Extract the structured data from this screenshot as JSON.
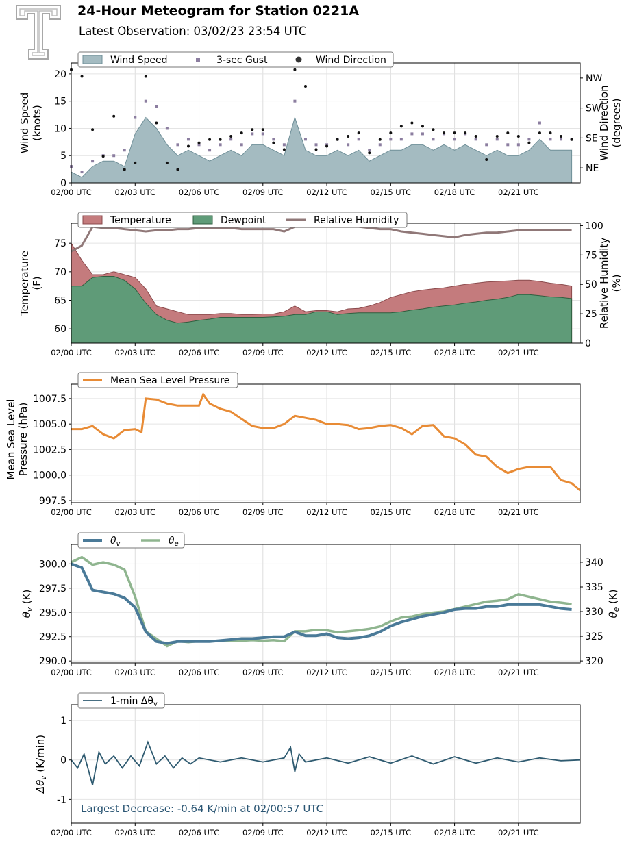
{
  "header": {
    "title": "24-Hour Meteogram for Station 0221A",
    "subtitle": "Latest Observation: 03/02/23 23:54 UTC",
    "logo_icon": "texas-tech-double-t-logo"
  },
  "colors": {
    "wind_speed": "#a4bbc1",
    "wind_speed_line": "#6f8f98",
    "gust": "#8c7ea0",
    "wind_dir": "#111111",
    "temperature": "#c47b7d",
    "dewpoint": "#5f9b78",
    "rh": "#907878",
    "pressure": "#e88b35",
    "theta_v": "#4a7a98",
    "theta_e": "#8fb58f",
    "dtheta": "#2e5a70",
    "annotation": "#2a5573"
  },
  "x_tick_labels": [
    "02/00 UTC",
    "02/03 UTC",
    "02/06 UTC",
    "02/09 UTC",
    "02/12 UTC",
    "02/15 UTC",
    "02/18 UTC",
    "02/21 UTC"
  ],
  "chart_data": [
    {
      "type": "area",
      "id": "wind",
      "legend": [
        "Wind Speed",
        "3-sec Gust",
        "Wind Direction"
      ],
      "ylabel": [
        "Wind Speed",
        "(knots)"
      ],
      "ylim": [
        0,
        22
      ],
      "yticks": [
        0,
        5,
        10,
        15,
        20
      ],
      "y2label": [
        "Wind Direction",
        "(degrees)"
      ],
      "y2ticks": [
        "NE",
        "SE",
        "SW",
        "NW"
      ],
      "x_hours": [
        0,
        0.5,
        1,
        1.5,
        2,
        2.5,
        3,
        3.5,
        4,
        4.5,
        5,
        5.5,
        6,
        6.5,
        7,
        7.5,
        8,
        8.5,
        9,
        9.5,
        10,
        10.5,
        11,
        11.5,
        12,
        12.5,
        13,
        13.5,
        14,
        14.5,
        15,
        15.5,
        16,
        16.5,
        17,
        17.5,
        18,
        18.5,
        19,
        19.5,
        20,
        20.5,
        21,
        21.5,
        22,
        22.5,
        23,
        23.5
      ],
      "series": [
        {
          "name": "Wind Speed",
          "values": [
            2,
            1,
            3,
            4,
            4,
            3,
            9,
            12,
            10,
            7,
            5,
            6,
            5,
            4,
            5,
            6,
            5,
            7,
            7,
            6,
            5,
            12,
            6,
            5,
            5,
            6,
            5,
            6,
            4,
            5,
            6,
            6,
            7,
            7,
            6,
            7,
            6,
            7,
            6,
            5,
            6,
            5,
            5,
            6,
            8,
            6,
            6,
            6
          ]
        },
        {
          "name": "3-sec Gust",
          "values": [
            3,
            2,
            4,
            5,
            5,
            6,
            12,
            15,
            14,
            10,
            7,
            8,
            7,
            6,
            7,
            8,
            7,
            9,
            9,
            8,
            7,
            15,
            8,
            7,
            7,
            8,
            7,
            8,
            6,
            7,
            8,
            8,
            9,
            9,
            8,
            9,
            8,
            9,
            8,
            7,
            8,
            7,
            7,
            8,
            11,
            8,
            8,
            8
          ]
        },
        {
          "name": "Wind Direction",
          "values": [
            340,
            320,
            160,
            80,
            200,
            40,
            60,
            320,
            180,
            60,
            40,
            110,
            120,
            130,
            130,
            140,
            150,
            160,
            160,
            120,
            100,
            340,
            290,
            100,
            110,
            130,
            140,
            150,
            90,
            130,
            150,
            170,
            180,
            170,
            160,
            150,
            150,
            150,
            140,
            70,
            140,
            150,
            140,
            120,
            150,
            150,
            140,
            130
          ]
        }
      ]
    },
    {
      "type": "area",
      "id": "temp",
      "legend": [
        "Temperature",
        "Dewpoint",
        "Relative Humidity"
      ],
      "ylabel": [
        "Temperature",
        "(F)"
      ],
      "ylim": [
        57.5,
        78.5
      ],
      "yticks": [
        60,
        65,
        70,
        75
      ],
      "y2label": [
        "Relative Humidity",
        "(%)"
      ],
      "y2lim": [
        0,
        102
      ],
      "y2ticks": [
        0,
        25,
        50,
        75,
        100
      ],
      "x_hours": [
        0,
        0.5,
        1,
        1.5,
        2,
        2.5,
        3,
        3.5,
        4,
        4.5,
        5,
        5.5,
        6,
        6.5,
        7,
        7.5,
        8,
        8.5,
        9,
        9.5,
        10,
        10.5,
        11,
        11.5,
        12,
        12.5,
        13,
        13.5,
        14,
        14.5,
        15,
        15.5,
        16,
        16.5,
        17,
        17.5,
        18,
        18.5,
        19,
        19.5,
        20,
        20.5,
        21,
        21.5,
        22,
        22.5,
        23,
        23.5
      ],
      "series": [
        {
          "name": "Temperature",
          "values": [
            75,
            72,
            69.5,
            69.5,
            70,
            69.5,
            69,
            67,
            64,
            63.5,
            63,
            62.5,
            62.5,
            62.5,
            62.7,
            62.7,
            62.5,
            62.5,
            62.6,
            62.6,
            63,
            64,
            63,
            63.2,
            63.2,
            63,
            63.5,
            63.6,
            64,
            64.6,
            65.5,
            66,
            66.5,
            66.8,
            67,
            67.2,
            67.5,
            67.8,
            68,
            68.2,
            68.3,
            68.4,
            68.5,
            68.5,
            68.3,
            68,
            67.8,
            67.5
          ]
        },
        {
          "name": "Dewpoint",
          "values": [
            67.5,
            67.5,
            69,
            69.2,
            69.2,
            68.5,
            67,
            64.5,
            62.5,
            61.5,
            61,
            61.2,
            61.5,
            61.7,
            62,
            62,
            62,
            62,
            62,
            62.1,
            62.2,
            62.5,
            62.5,
            63,
            63,
            62.5,
            62.7,
            62.8,
            62.8,
            62.8,
            62.8,
            63,
            63.3,
            63.5,
            63.8,
            64,
            64.2,
            64.5,
            64.7,
            65,
            65.2,
            65.5,
            66,
            66,
            65.8,
            65.6,
            65.5,
            65.3
          ]
        },
        {
          "name": "Relative Humidity",
          "values": [
            78,
            83,
            99,
            98,
            98,
            97,
            96,
            95,
            96,
            96,
            97,
            97,
            98,
            98,
            98,
            98,
            97,
            97,
            97,
            97,
            95,
            99,
            99,
            99,
            99,
            99,
            99,
            99,
            98,
            97,
            97,
            95,
            94,
            93,
            92,
            91,
            90,
            92,
            93,
            94,
            94,
            95,
            96,
            96,
            96,
            96,
            96,
            96
          ]
        }
      ]
    },
    {
      "type": "line",
      "id": "pressure",
      "legend": [
        "Mean Sea Level Pressure"
      ],
      "ylabel": [
        "Mean Sea Level",
        "Pressure (hPa)"
      ],
      "ylim": [
        997.3,
        1008.9
      ],
      "yticks": [
        997.5,
        1000.0,
        1002.5,
        1005.0,
        1007.5
      ],
      "x_hours": [
        0,
        0.5,
        1,
        1.5,
        2,
        2.5,
        3,
        3.3,
        3.5,
        4,
        4.5,
        5,
        5.5,
        6,
        6.2,
        6.5,
        7,
        7.5,
        8,
        8.5,
        9,
        9.5,
        10,
        10.5,
        11,
        11.5,
        12,
        12.5,
        13,
        13.5,
        14,
        14.5,
        15,
        15.5,
        16,
        16.5,
        17,
        17.5,
        18,
        18.5,
        19,
        19.5,
        20,
        20.5,
        21,
        21.5,
        22,
        22.5,
        23,
        23.5,
        23.9
      ],
      "series": [
        {
          "name": "Mean Sea Level Pressure",
          "values": [
            1004.5,
            1004.5,
            1004.8,
            1004.0,
            1003.6,
            1004.4,
            1004.5,
            1004.2,
            1007.5,
            1007.4,
            1007.0,
            1006.8,
            1006.8,
            1006.8,
            1007.9,
            1007.0,
            1006.5,
            1006.2,
            1005.5,
            1004.8,
            1004.6,
            1004.6,
            1005.0,
            1005.8,
            1005.6,
            1005.4,
            1005.0,
            1005.0,
            1004.9,
            1004.5,
            1004.6,
            1004.8,
            1004.9,
            1004.6,
            1004.0,
            1004.8,
            1004.9,
            1003.8,
            1003.6,
            1003.0,
            1002.0,
            1001.8,
            1000.8,
            1000.2,
            1000.6,
            1000.8,
            1000.8,
            1000.8,
            999.5,
            999.2,
            998.5
          ]
        }
      ]
    },
    {
      "type": "line",
      "id": "theta",
      "legend": [
        "θ",
        "θ"
      ],
      "legend_subs": [
        "v",
        "e"
      ],
      "ylabel": "θ",
      "ylabel_sub": "v",
      "ylabel_unit": " (K)",
      "ylim": [
        289.8,
        302.0
      ],
      "yticks": [
        290.0,
        292.5,
        295.0,
        297.5,
        300.0
      ],
      "y2label": "θ",
      "y2label_sub": "e",
      "y2label_unit": " (K)",
      "y2lim": [
        319.6,
        343.6
      ],
      "y2ticks": [
        320,
        325,
        330,
        335,
        340
      ],
      "x_hours": [
        0,
        0.5,
        1,
        1.5,
        2,
        2.5,
        3,
        3.5,
        4,
        4.5,
        5,
        5.5,
        6,
        6.5,
        7,
        7.5,
        8,
        8.5,
        9,
        9.5,
        10,
        10.5,
        11,
        11.5,
        12,
        12.5,
        13,
        13.5,
        14,
        14.5,
        15,
        15.5,
        16,
        16.5,
        17,
        17.5,
        18,
        18.5,
        19,
        19.5,
        20,
        20.5,
        21,
        21.5,
        22,
        22.5,
        23,
        23.5
      ],
      "series": [
        {
          "name": "θv",
          "values": [
            300.0,
            299.6,
            297.3,
            297.1,
            296.9,
            296.5,
            295.5,
            293.0,
            292.0,
            291.8,
            292.0,
            292.0,
            292.0,
            292.0,
            292.1,
            292.2,
            292.3,
            292.3,
            292.4,
            292.5,
            292.5,
            293.0,
            292.6,
            292.6,
            292.8,
            292.4,
            292.3,
            292.4,
            292.6,
            293.0,
            293.6,
            294.0,
            294.3,
            294.6,
            294.8,
            295.0,
            295.3,
            295.4,
            295.4,
            295.6,
            295.6,
            295.8,
            295.8,
            295.8,
            295.8,
            295.6,
            295.4,
            295.3
          ]
        },
        {
          "name": "θe",
          "values": [
            340.0,
            341.0,
            339.5,
            340.0,
            339.5,
            338.5,
            333.0,
            326.0,
            324.5,
            323.0,
            324.0,
            323.8,
            324.0,
            324.0,
            324.0,
            324.0,
            324.1,
            324.2,
            324.1,
            324.2,
            324.0,
            326.0,
            326.0,
            326.3,
            326.2,
            325.8,
            326.0,
            326.2,
            326.5,
            327.0,
            328.0,
            328.8,
            329.0,
            329.5,
            329.8,
            330.0,
            330.5,
            331.0,
            331.5,
            332.0,
            332.2,
            332.5,
            333.5,
            333.0,
            332.5,
            332.0,
            331.8,
            331.5
          ]
        }
      ]
    },
    {
      "type": "line",
      "id": "dtheta",
      "legend": [
        "1-min Δθ"
      ],
      "legend_subs": [
        "v"
      ],
      "ylabel": "Δθ",
      "ylabel_sub": "v",
      "ylabel_unit": " (K/min)",
      "ylim": [
        -1.6,
        1.4
      ],
      "yticks": [
        -1,
        0,
        1
      ],
      "x_hours": [
        0,
        0.3,
        0.6,
        1.0,
        1.3,
        1.6,
        2.0,
        2.4,
        2.8,
        3.2,
        3.6,
        4.0,
        4.4,
        4.8,
        5.2,
        5.6,
        6.0,
        7.0,
        8.0,
        9.0,
        10.0,
        10.3,
        10.5,
        10.7,
        11.0,
        12.0,
        13.0,
        14.0,
        15.0,
        16.0,
        17.0,
        18.0,
        19.0,
        20.0,
        21.0,
        22.0,
        23.0,
        23.9
      ],
      "series": [
        {
          "name": "1-min Δθv",
          "values": [
            0,
            -0.2,
            0.15,
            -0.64,
            0.2,
            -0.1,
            0.1,
            -0.2,
            0.1,
            -0.15,
            0.45,
            -0.1,
            0.1,
            -0.2,
            0.05,
            -0.1,
            0.05,
            -0.05,
            0.05,
            -0.05,
            0.05,
            0.32,
            -0.3,
            0.15,
            -0.05,
            0.05,
            -0.08,
            0.08,
            -0.08,
            0.1,
            -0.1,
            0.08,
            -0.08,
            0.05,
            -0.05,
            0.05,
            -0.02,
            0
          ]
        }
      ],
      "annotation": "Largest Decrease: -0.64 K/min at 02/00:57 UTC"
    }
  ]
}
